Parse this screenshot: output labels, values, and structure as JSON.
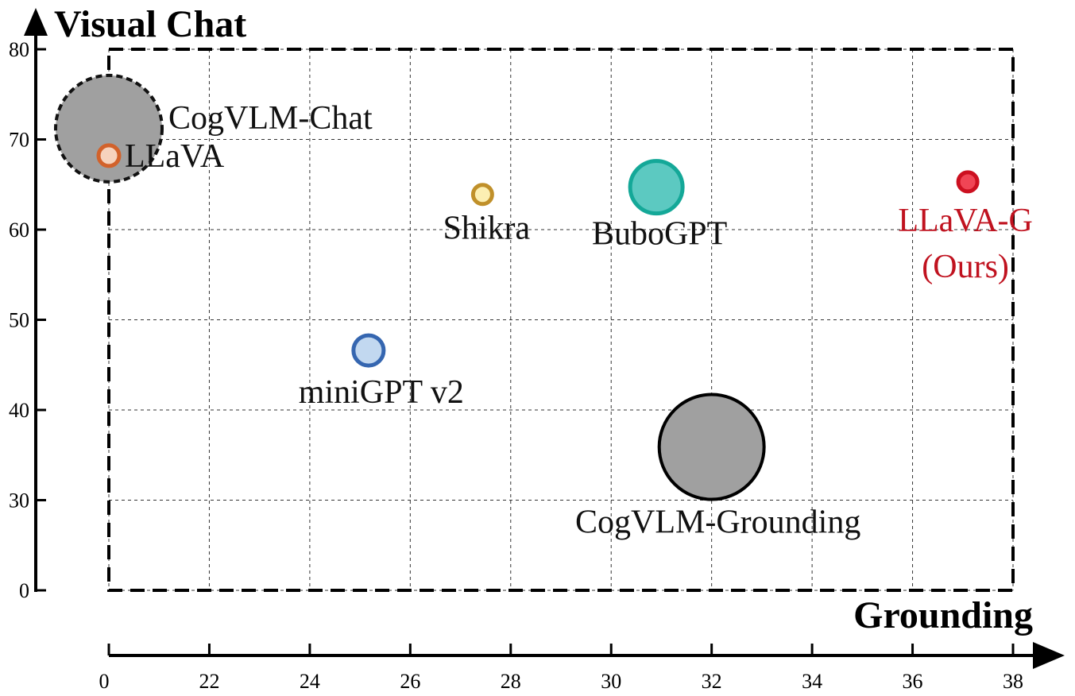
{
  "chart_data": {
    "type": "bubble",
    "y_label": "Visual Chat",
    "x_label": "Grounding",
    "xlim": [
      20,
      38
    ],
    "ylim": [
      20,
      80
    ],
    "xticks": [
      {
        "value": 20,
        "label": "0"
      },
      22,
      24,
      26,
      28,
      30,
      32,
      34,
      36,
      38
    ],
    "yticks": [
      {
        "value": 20,
        "label": "0"
      },
      30,
      40,
      50,
      60,
      70,
      80
    ],
    "grid": true,
    "points": [
      {
        "label_lines": [
          "CogVLM-Chat"
        ],
        "x": 20,
        "y": 71.2,
        "size": 67,
        "color": "#a0a0a0",
        "edge": "#111111",
        "line_style": "dashed",
        "text_color": "#111111"
      },
      {
        "label_lines": [
          "LLaVA"
        ],
        "x": 20,
        "y": 68.2,
        "size": 13,
        "color": "#f6d3bd",
        "edge": "#d2622b",
        "line_style": "solid",
        "text_color": "#111111"
      },
      {
        "label_lines": [
          "Shikra"
        ],
        "x": 27.44,
        "y": 63.9,
        "size": 12,
        "color": "#fcefb2",
        "edge": "#c0902a",
        "line_style": "solid",
        "text_color": "#111111"
      },
      {
        "label_lines": [
          "BuboGPT"
        ],
        "x": 30.9,
        "y": 64.7,
        "size": 33,
        "color": "#5cc9c1",
        "edge": "#14a898",
        "line_style": "solid",
        "text_color": "#111111"
      },
      {
        "label_lines": [
          "LLaVA-G",
          "(Ours)"
        ],
        "x": 37.1,
        "y": 65.3,
        "size": 12,
        "color": "#f04555",
        "edge": "#cc1020",
        "line_style": "solid",
        "text_color": "#c0121f"
      },
      {
        "label_lines": [
          "miniGPT v2"
        ],
        "x": 25.17,
        "y": 46.6,
        "size": 19,
        "color": "#c2d8f0",
        "edge": "#3566b0",
        "line_style": "solid",
        "text_color": "#111111"
      },
      {
        "label_lines": [
          "CogVLM-Grounding"
        ],
        "x": 32.0,
        "y": 35.9,
        "size": 66,
        "color": "#a0a0a0",
        "edge": "#000000",
        "line_style": "solid",
        "text_color": "#111111"
      }
    ]
  }
}
